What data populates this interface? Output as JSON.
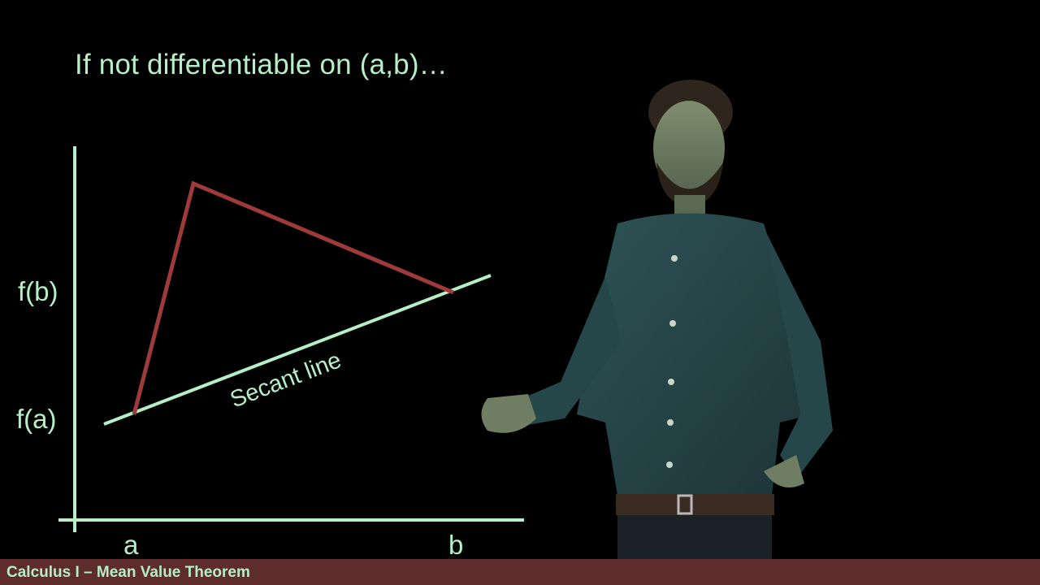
{
  "slide": {
    "title": "If not differentiable on (a,b)…"
  },
  "diagram": {
    "y_labels": {
      "fb": "f(b)",
      "fa": "f(a)"
    },
    "x_labels": {
      "a": "a",
      "b": "b"
    },
    "secant_label": "Secant line",
    "colors": {
      "axes": "#b6eec6",
      "secant": "#b6eec6",
      "function": "#9e3a3a"
    }
  },
  "footer": {
    "title": "Calculus I – Mean Value Theorem"
  }
}
